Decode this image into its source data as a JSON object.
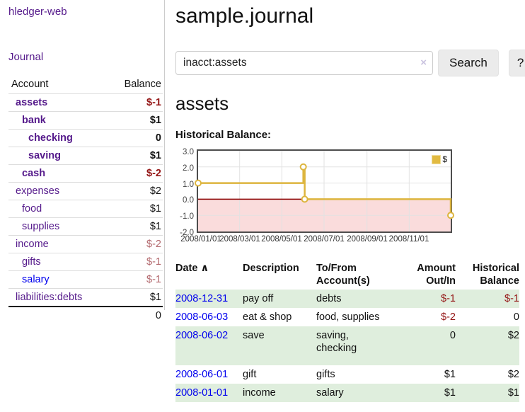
{
  "sidebar": {
    "brand": "hledger-web",
    "journal_label": "Journal",
    "accounts": {
      "header_account": "Account",
      "header_balance": "Balance",
      "rows": [
        {
          "name": "assets",
          "balance": "$-1"
        },
        {
          "name": "bank",
          "balance": "$1"
        },
        {
          "name": "checking",
          "balance": "0"
        },
        {
          "name": "saving",
          "balance": "$1"
        },
        {
          "name": "cash",
          "balance": "$-2"
        },
        {
          "name": "expenses",
          "balance": "$2"
        },
        {
          "name": "food",
          "balance": "$1"
        },
        {
          "name": "supplies",
          "balance": "$1"
        },
        {
          "name": "income",
          "balance": "$-2"
        },
        {
          "name": "gifts",
          "balance": "$-1"
        },
        {
          "name": "salary",
          "balance": "$-1"
        },
        {
          "name": "liabilities:debts",
          "balance": "$1"
        }
      ],
      "total": "0"
    }
  },
  "header": {
    "title": "sample.journal"
  },
  "search": {
    "query": "inacct:assets",
    "clear_icon": "×",
    "button_label": "Search",
    "help_label": "?"
  },
  "account_page": {
    "heading": "assets",
    "chart_label": "Historical Balance:"
  },
  "chart_data": {
    "type": "line",
    "step": true,
    "title": "Historical Balance",
    "legend": "$",
    "x_range": [
      "2008-01-01",
      "2008-12-31"
    ],
    "ylim": [
      -2,
      3
    ],
    "yticks": [
      "3.0",
      "2.0",
      "1.0",
      "0.0",
      "-1.0",
      "-2.0"
    ],
    "xticks": [
      "2008/01/01",
      "2008/03/01",
      "2008/05/01",
      "2008/07/01",
      "2008/09/01",
      "2008/11/01"
    ],
    "series": [
      {
        "name": "$",
        "points": [
          [
            "2008-01-01",
            1
          ],
          [
            "2008-06-01",
            2
          ],
          [
            "2008-06-03",
            0
          ],
          [
            "2008-12-31",
            -1
          ]
        ]
      }
    ],
    "colors": {
      "line": "#ddb53e",
      "negative_fill": "#fadcdc",
      "zero_line": "#8b0000",
      "grid": "#e2e2e2",
      "border": "#4d4d4d"
    }
  },
  "register": {
    "headers": {
      "date": "Date",
      "sort_arrow": "∧",
      "description": "Description",
      "tofrom_line1": "To/From",
      "tofrom_line2": "Account(s)",
      "amount_line1": "Amount",
      "amount_line2": "Out/In",
      "balance_line1": "Historical",
      "balance_line2": "Balance"
    },
    "rows": [
      {
        "date": "2008-12-31",
        "description": "pay off",
        "accounts": "debts",
        "amount": "$-1",
        "balance": "$-1"
      },
      {
        "date": "2008-06-03",
        "description": "eat & shop",
        "accounts": "food, supplies",
        "amount": "$-2",
        "balance": "0"
      },
      {
        "date": "2008-06-02",
        "description": "save",
        "accounts": "saving, checking",
        "amount": "0",
        "balance": "$2"
      },
      {
        "date": "2008-06-01",
        "description": "gift",
        "accounts": "gifts",
        "amount": "$1",
        "balance": "$2"
      },
      {
        "date": "2008-01-01",
        "description": "income",
        "accounts": "salary",
        "amount": "$1",
        "balance": "$1"
      }
    ]
  }
}
